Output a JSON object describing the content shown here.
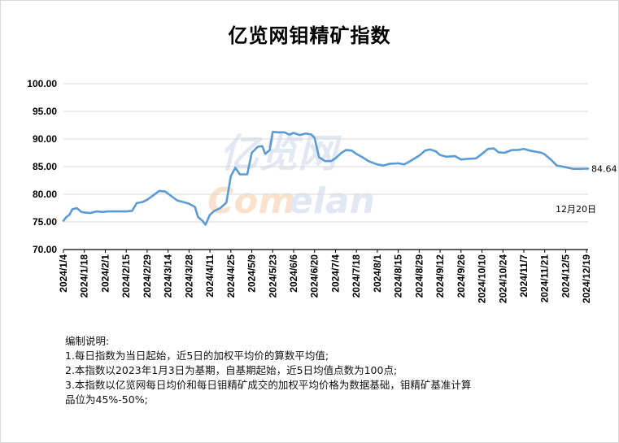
{
  "title": "亿览网钼精矿指数",
  "watermark": "Comelan 亿览网",
  "colors": {
    "line": "#5b9bd5",
    "grid": "#d9d9d9",
    "axis": "#000000"
  },
  "chart_data": {
    "type": "line",
    "title": "亿览网钼精矿指数",
    "xlabel": "",
    "ylabel": "",
    "ylim": [
      70,
      100
    ],
    "yticks": [
      "100.00",
      "95.00",
      "90.00",
      "85.00",
      "80.00",
      "75.00",
      "70.00"
    ],
    "xticks": [
      "2024/1/4",
      "2024/1/18",
      "2024/2/1",
      "2024/2/15",
      "2024/2/29",
      "2024/3/14",
      "2024/3/28",
      "2024/4/11",
      "2024/4/25",
      "2024/5/9",
      "2024/5/23",
      "2024/6/6",
      "2024/6/20",
      "2024/7/4",
      "2024/7/18",
      "2024/8/1",
      "2024/8/15",
      "2024/8/29",
      "2024/9/12",
      "2024/9/26",
      "2024/10/10",
      "2024/10/24",
      "2024/11/7",
      "2024/11/21",
      "2024/12/5",
      "2024/12/19"
    ],
    "grid": true,
    "legend": "none",
    "series": [
      {
        "name": "",
        "points": [
          [
            "2024/1/4",
            75.2
          ],
          [
            "2024/1/6",
            75.9
          ],
          [
            "2024/1/8",
            76.3
          ],
          [
            "2024/1/10",
            77.3
          ],
          [
            "2024/1/13",
            77.5
          ],
          [
            "2024/1/16",
            76.8
          ],
          [
            "2024/1/18",
            76.7
          ],
          [
            "2024/1/22",
            76.6
          ],
          [
            "2024/1/26",
            76.9
          ],
          [
            "2024/1/30",
            76.8
          ],
          [
            "2024/2/3",
            76.9
          ],
          [
            "2024/2/8",
            76.9
          ],
          [
            "2024/2/15",
            76.9
          ],
          [
            "2024/2/19",
            77.0
          ],
          [
            "2024/2/22",
            78.4
          ],
          [
            "2024/2/26",
            78.6
          ],
          [
            "2024/2/29",
            79.0
          ],
          [
            "2024/3/4",
            79.8
          ],
          [
            "2024/3/8",
            80.6
          ],
          [
            "2024/3/12",
            80.5
          ],
          [
            "2024/3/16",
            79.7
          ],
          [
            "2024/3/20",
            78.9
          ],
          [
            "2024/3/24",
            78.6
          ],
          [
            "2024/3/28",
            78.3
          ],
          [
            "2024/4/1",
            77.7
          ],
          [
            "2024/4/3",
            75.9
          ],
          [
            "2024/4/6",
            75.2
          ],
          [
            "2024/4/8",
            74.5
          ],
          [
            "2024/4/11",
            76.3
          ],
          [
            "2024/4/14",
            77.0
          ],
          [
            "2024/4/18",
            77.5
          ],
          [
            "2024/4/22",
            78.5
          ],
          [
            "2024/4/25",
            83.3
          ],
          [
            "2024/4/28",
            84.8
          ],
          [
            "2024/5/1",
            83.6
          ],
          [
            "2024/5/6",
            83.6
          ],
          [
            "2024/5/9",
            87.5
          ],
          [
            "2024/5/13",
            88.6
          ],
          [
            "2024/5/16",
            88.7
          ],
          [
            "2024/5/18",
            87.3
          ],
          [
            "2024/5/21",
            88.0
          ],
          [
            "2024/5/23",
            91.3
          ],
          [
            "2024/5/27",
            91.2
          ],
          [
            "2024/5/31",
            91.2
          ],
          [
            "2024/6/3",
            90.8
          ],
          [
            "2024/6/6",
            91.1
          ],
          [
            "2024/6/10",
            90.7
          ],
          [
            "2024/6/14",
            91.0
          ],
          [
            "2024/6/18",
            90.8
          ],
          [
            "2024/6/20",
            90.2
          ],
          [
            "2024/6/23",
            86.7
          ],
          [
            "2024/6/27",
            86.0
          ],
          [
            "2024/7/1",
            86.0
          ],
          [
            "2024/7/4",
            86.5
          ],
          [
            "2024/7/8",
            87.5
          ],
          [
            "2024/7/11",
            88.0
          ],
          [
            "2024/7/15",
            87.9
          ],
          [
            "2024/7/18",
            87.3
          ],
          [
            "2024/7/22",
            86.7
          ],
          [
            "2024/7/26",
            86.0
          ],
          [
            "2024/8/1",
            85.4
          ],
          [
            "2024/8/5",
            85.2
          ],
          [
            "2024/8/9",
            85.5
          ],
          [
            "2024/8/15",
            85.6
          ],
          [
            "2024/8/19",
            85.4
          ],
          [
            "2024/8/23",
            86.0
          ],
          [
            "2024/8/29",
            87.0
          ],
          [
            "2024/9/2",
            87.9
          ],
          [
            "2024/9/5",
            88.1
          ],
          [
            "2024/9/9",
            87.8
          ],
          [
            "2024/9/12",
            87.1
          ],
          [
            "2024/9/16",
            86.8
          ],
          [
            "2024/9/22",
            86.9
          ],
          [
            "2024/9/26",
            86.3
          ],
          [
            "2024/9/30",
            86.4
          ],
          [
            "2024/10/6",
            86.5
          ],
          [
            "2024/10/10",
            87.3
          ],
          [
            "2024/10/14",
            88.2
          ],
          [
            "2024/10/18",
            88.3
          ],
          [
            "2024/10/21",
            87.6
          ],
          [
            "2024/10/25",
            87.5
          ],
          [
            "2024/10/30",
            88.0
          ],
          [
            "2024/11/3",
            88.0
          ],
          [
            "2024/11/7",
            88.2
          ],
          [
            "2024/11/11",
            87.9
          ],
          [
            "2024/11/15",
            87.7
          ],
          [
            "2024/11/19",
            87.5
          ],
          [
            "2024/11/21",
            87.2
          ],
          [
            "2024/11/25",
            86.3
          ],
          [
            "2024/11/29",
            85.2
          ],
          [
            "2024/12/5",
            84.9
          ],
          [
            "2024/12/10",
            84.6
          ],
          [
            "2024/12/15",
            84.6
          ],
          [
            "2024/12/20",
            84.64
          ]
        ]
      }
    ],
    "annotations": {
      "last_value": "84.64",
      "last_date_label": "12月20日"
    }
  },
  "notes": [
    "编制说明:",
    "1.每日指数为当日起始，近5日的加权平均价的算数平均值;",
    "2.本指数以2023年1月3日为基期，自基期起始，近5日均值点数为100点;",
    "3.本指数以亿览网每日均价和每日钼精矿成交的加权平均价格为数据基础，钼精矿基准计算",
    "品位为45%-50%;"
  ]
}
